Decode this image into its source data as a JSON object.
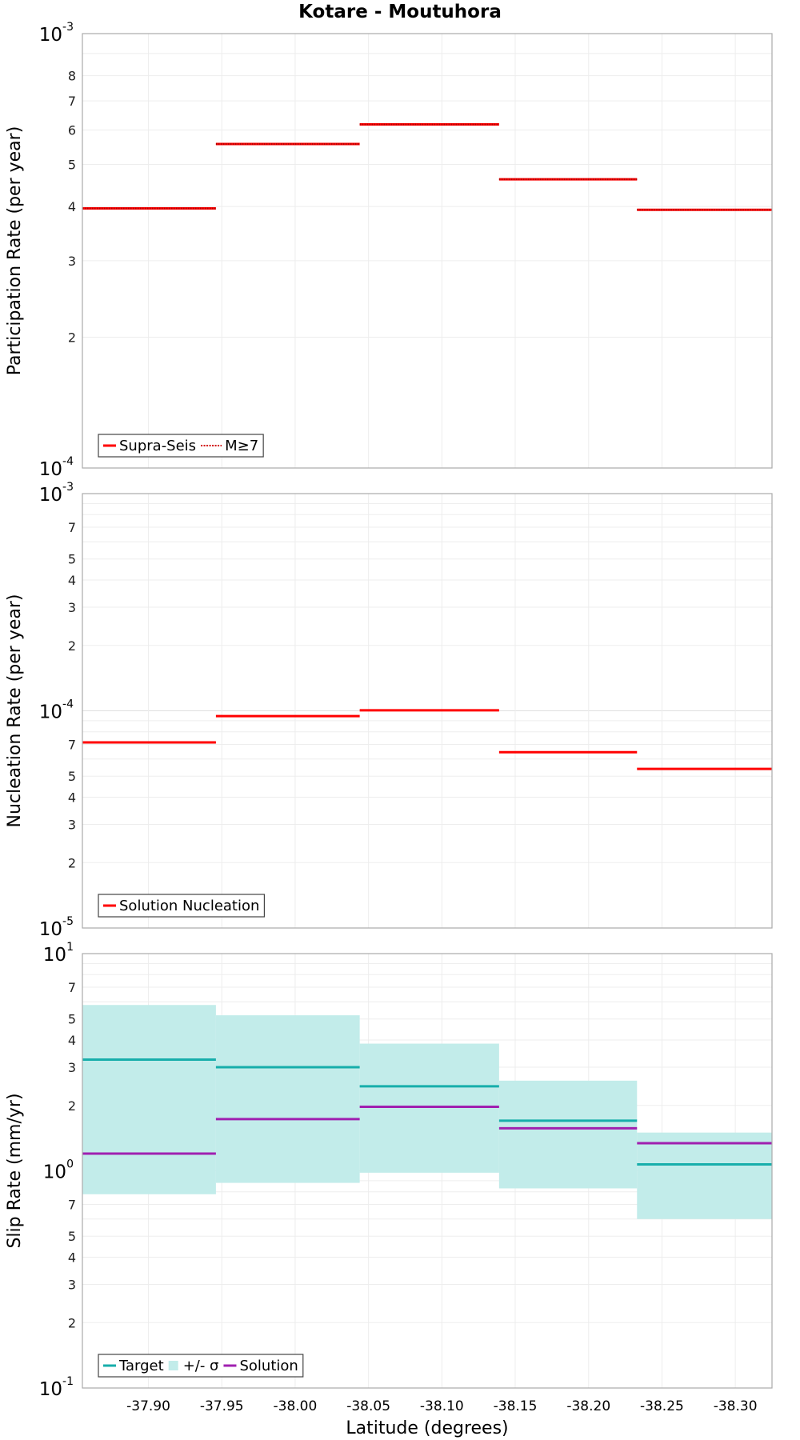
{
  "chart_title": "Kotare - Moutuhora",
  "chart_data": [
    {
      "type": "line",
      "ylabel": "Participation Rate (per year)",
      "yscale": "log",
      "ylim": [
        0.0001,
        0.001
      ],
      "xlim": [
        -37.855,
        -38.325
      ],
      "decade_labels": [
        {
          "value": 0.001,
          "base": "10",
          "exp": "-3"
        },
        {
          "value": 0.0001,
          "base": "10",
          "exp": "-4"
        }
      ],
      "minor_tick_labels": [
        {
          "value": 0.0008,
          "label": "8"
        },
        {
          "value": 0.0007,
          "label": "7"
        },
        {
          "value": 0.0006,
          "label": "6"
        },
        {
          "value": 0.0005,
          "label": "5"
        },
        {
          "value": 0.0004,
          "label": "4"
        },
        {
          "value": 0.0003,
          "label": "3"
        },
        {
          "value": 0.0002,
          "label": "2"
        }
      ],
      "series": [
        {
          "name": "Supra-Seis",
          "color": "#ff0000",
          "style": "solid",
          "segments": [
            {
              "x0": -37.855,
              "x1": -37.946,
              "y": 0.000396
            },
            {
              "x0": -37.946,
              "x1": -38.044,
              "y": 0.000557
            },
            {
              "x0": -38.044,
              "x1": -38.139,
              "y": 0.000618
            },
            {
              "x0": -38.139,
              "x1": -38.233,
              "y": 0.000462
            },
            {
              "x0": -38.233,
              "x1": -38.325,
              "y": 0.000393
            }
          ]
        },
        {
          "name": "M≥7",
          "color": "#ff0000",
          "style": "dotted",
          "segments": [
            {
              "x0": -37.855,
              "x1": -37.946,
              "y": 0.000396
            },
            {
              "x0": -37.946,
              "x1": -38.044,
              "y": 0.000557
            },
            {
              "x0": -38.044,
              "x1": -38.139,
              "y": 0.000618
            },
            {
              "x0": -38.139,
              "x1": -38.233,
              "y": 0.000462
            },
            {
              "x0": -38.233,
              "x1": -38.325,
              "y": 0.000393
            }
          ]
        }
      ],
      "legend": {
        "placement": "bottom-left",
        "items": [
          {
            "label": "Supra-Seis",
            "color": "#ff0000",
            "style": "solid"
          },
          {
            "label": "M≥7",
            "color": "#ff0000",
            "style": "dotted"
          }
        ]
      }
    },
    {
      "type": "line",
      "ylabel": "Nucleation Rate (per year)",
      "yscale": "log",
      "ylim": [
        1e-05,
        0.001
      ],
      "xlim": [
        -37.855,
        -38.325
      ],
      "decade_labels": [
        {
          "value": 0.001,
          "base": "10",
          "exp": "-3"
        },
        {
          "value": 0.0001,
          "base": "10",
          "exp": "-4"
        },
        {
          "value": 1e-05,
          "base": "10",
          "exp": "-5"
        }
      ],
      "minor_tick_labels": [
        {
          "value": 0.0007,
          "label": "7"
        },
        {
          "value": 0.0005,
          "label": "5"
        },
        {
          "value": 0.0004,
          "label": "4"
        },
        {
          "value": 0.0003,
          "label": "3"
        },
        {
          "value": 0.0002,
          "label": "2"
        },
        {
          "value": 7e-05,
          "label": "7"
        },
        {
          "value": 5e-05,
          "label": "5"
        },
        {
          "value": 4e-05,
          "label": "4"
        },
        {
          "value": 3e-05,
          "label": "3"
        },
        {
          "value": 2e-05,
          "label": "2"
        }
      ],
      "series": [
        {
          "name": "Solution Nucleation",
          "color": "#ff0000",
          "style": "solid",
          "segments": [
            {
              "x0": -37.855,
              "x1": -37.946,
              "y": 7.15e-05
            },
            {
              "x0": -37.946,
              "x1": -38.044,
              "y": 9.45e-05
            },
            {
              "x0": -38.044,
              "x1": -38.139,
              "y": 0.0001005
            },
            {
              "x0": -38.139,
              "x1": -38.233,
              "y": 6.45e-05
            },
            {
              "x0": -38.233,
              "x1": -38.325,
              "y": 5.4e-05
            }
          ]
        }
      ],
      "legend": {
        "placement": "bottom-left",
        "items": [
          {
            "label": "Solution Nucleation",
            "color": "#ff0000",
            "style": "solid"
          }
        ]
      }
    },
    {
      "type": "line",
      "ylabel": "Slip Rate (mm/yr)",
      "xlabel": "Latitude (degrees)",
      "yscale": "log",
      "ylim": [
        0.1,
        10
      ],
      "xlim": [
        -37.855,
        -38.325
      ],
      "x_ticks": [
        -37.9,
        -37.95,
        -38.0,
        -38.05,
        -38.1,
        -38.15,
        -38.2,
        -38.25,
        -38.3
      ],
      "x_tick_labels": [
        "-37.90",
        "-37.95",
        "-38.00",
        "-38.05",
        "-38.10",
        "-38.15",
        "-38.20",
        "-38.25",
        "-38.30"
      ],
      "decade_labels": [
        {
          "value": 10,
          "base": "10",
          "exp": "1"
        },
        {
          "value": 1,
          "base": "10",
          "exp": "0"
        },
        {
          "value": 0.1,
          "base": "10",
          "exp": "-1"
        }
      ],
      "minor_tick_labels": [
        {
          "value": 7,
          "label": "7"
        },
        {
          "value": 5,
          "label": "5"
        },
        {
          "value": 4,
          "label": "4"
        },
        {
          "value": 3,
          "label": "3"
        },
        {
          "value": 2,
          "label": "2"
        },
        {
          "value": 0.7,
          "label": "7"
        },
        {
          "value": 0.5,
          "label": "5"
        },
        {
          "value": 0.4,
          "label": "4"
        },
        {
          "value": 0.3,
          "label": "3"
        },
        {
          "value": 0.2,
          "label": "2"
        }
      ],
      "bands": {
        "name": "+/- σ",
        "color": "#c2ecea",
        "segments": [
          {
            "x0": -37.855,
            "x1": -37.946,
            "lo": 0.78,
            "hi": 5.8
          },
          {
            "x0": -37.946,
            "x1": -38.044,
            "lo": 0.88,
            "hi": 5.2
          },
          {
            "x0": -38.044,
            "x1": -38.139,
            "lo": 0.98,
            "hi": 3.85
          },
          {
            "x0": -38.139,
            "x1": -38.233,
            "lo": 0.83,
            "hi": 2.6
          },
          {
            "x0": -38.233,
            "x1": -38.325,
            "lo": 0.6,
            "hi": 1.5
          }
        ]
      },
      "series": [
        {
          "name": "Target",
          "color": "#17aeab",
          "style": "solid",
          "segments": [
            {
              "x0": -37.855,
              "x1": -37.946,
              "y": 3.25
            },
            {
              "x0": -37.946,
              "x1": -38.044,
              "y": 3.0
            },
            {
              "x0": -38.044,
              "x1": -38.139,
              "y": 2.45
            },
            {
              "x0": -38.139,
              "x1": -38.233,
              "y": 1.7
            },
            {
              "x0": -38.233,
              "x1": -38.325,
              "y": 1.07
            }
          ]
        },
        {
          "name": "Solution",
          "color": "#a020b0",
          "style": "solid",
          "segments": [
            {
              "x0": -37.855,
              "x1": -37.946,
              "y": 1.2
            },
            {
              "x0": -37.946,
              "x1": -38.044,
              "y": 1.73
            },
            {
              "x0": -38.044,
              "x1": -38.139,
              "y": 1.97
            },
            {
              "x0": -38.139,
              "x1": -38.233,
              "y": 1.57
            },
            {
              "x0": -38.233,
              "x1": -38.325,
              "y": 1.34
            }
          ]
        }
      ],
      "legend": {
        "placement": "bottom-left",
        "items": [
          {
            "label": "Target",
            "color": "#17aeab",
            "style": "solid"
          },
          {
            "label": "+/- σ",
            "color": "#c2ecea",
            "style": "box"
          },
          {
            "label": "Solution",
            "color": "#a020b0",
            "style": "solid"
          }
        ]
      }
    }
  ]
}
